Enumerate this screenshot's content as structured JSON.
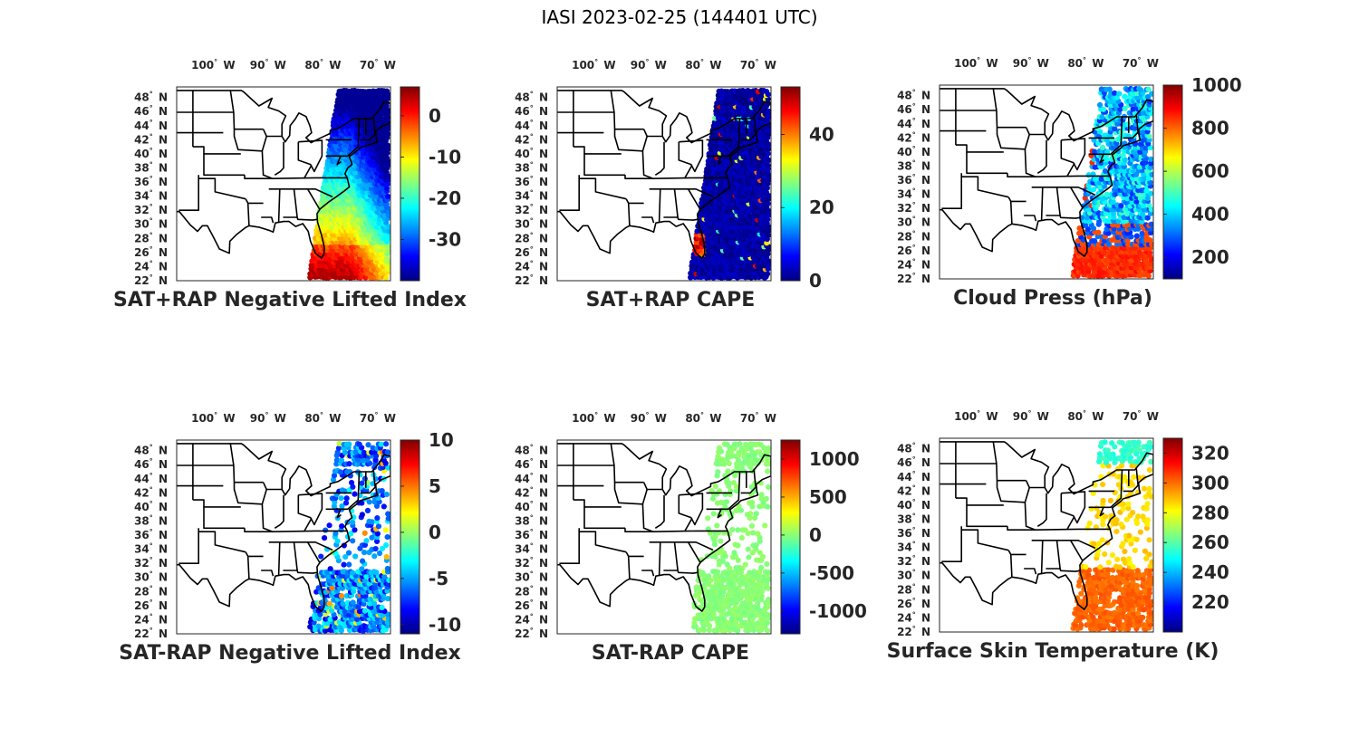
{
  "title": "IASI 2023-02-25 (144401 UTC)",
  "lon_ticks": [
    {
      "deg": "100",
      "dir": "W"
    },
    {
      "deg": "90",
      "dir": "W"
    },
    {
      "deg": "80",
      "dir": "W"
    },
    {
      "deg": "70",
      "dir": "W"
    }
  ],
  "lat_ticks": [
    {
      "deg": "48",
      "dir": "N"
    },
    {
      "deg": "46",
      "dir": "N"
    },
    {
      "deg": "44",
      "dir": "N"
    },
    {
      "deg": "42",
      "dir": "N"
    },
    {
      "deg": "40",
      "dir": "N"
    },
    {
      "deg": "38",
      "dir": "N"
    },
    {
      "deg": "36",
      "dir": "N"
    },
    {
      "deg": "34",
      "dir": "N"
    },
    {
      "deg": "32",
      "dir": "N"
    },
    {
      "deg": "30",
      "dir": "N"
    },
    {
      "deg": "28",
      "dir": "N"
    },
    {
      "deg": "26",
      "dir": "N"
    },
    {
      "deg": "24",
      "dir": "N"
    },
    {
      "deg": "22",
      "dir": "N"
    }
  ],
  "map_extent": {
    "lon": [
      -107,
      -68
    ],
    "lat": [
      22,
      49.5
    ]
  },
  "colormap": "jet",
  "panels": [
    {
      "id": "p1",
      "title": "SAT+RAP Negative Lifted Index",
      "colorbar": {
        "min": -40,
        "max": 7,
        "ticks": [
          "0",
          "-10",
          "-20",
          "-30"
        ],
        "tick_values": [
          0,
          -10,
          -20,
          -30
        ]
      },
      "coverage": "wide swath over the eastern United States and adjacent Atlantic; warm values (0 to -10) over the Southeast, cold values (-20 to -30) to the north and offshore"
    },
    {
      "id": "p2",
      "title": "SAT+RAP CAPE",
      "colorbar": {
        "min": 0,
        "max": 53,
        "ticks": [
          "40",
          "20",
          "0"
        ],
        "tick_values": [
          40,
          20,
          0
        ]
      },
      "coverage": "wide swath, almost entirely near 0 with isolated higher values over Florida and the Carolinas"
    },
    {
      "id": "p3",
      "title": "Cloud Press (hPa)",
      "colorbar": {
        "min": 100,
        "max": 1000,
        "ticks": [
          "1000",
          "800",
          "600",
          "400",
          "200"
        ],
        "tick_values": [
          1000,
          800,
          600,
          400,
          200
        ]
      },
      "coverage": "cloudy footprints only; high clouds (200-400 hPa) inland, low clouds (800-900 hPa) offshore in the south"
    },
    {
      "id": "p4",
      "title": "SAT-RAP Negative Lifted Index",
      "colorbar": {
        "min": -11,
        "max": 10,
        "ticks": [
          "10",
          "5",
          "0",
          "-5",
          "-10"
        ],
        "tick_values": [
          10,
          5,
          0,
          -5,
          -10
        ]
      },
      "coverage": "clear footprints only; mostly -2 to -10 with a few positive values"
    },
    {
      "id": "p5",
      "title": "SAT-RAP CAPE",
      "colorbar": {
        "min": -1300,
        "max": 1250,
        "ticks": [
          "1000",
          "500",
          "0",
          "-500",
          "-1000"
        ],
        "tick_values": [
          1000,
          500,
          0,
          -500,
          -1000
        ]
      },
      "coverage": "clear footprints only; nearly uniform around 0"
    },
    {
      "id": "p6",
      "title": "Surface Skin Temperature (K)",
      "colorbar": {
        "min": 200,
        "max": 330,
        "ticks": [
          "320",
          "300",
          "280",
          "260",
          "240",
          "220"
        ],
        "tick_values": [
          320,
          300,
          280,
          260,
          240,
          220
        ]
      },
      "coverage": "clear footprints only; about 300 K offshore in the south, 280-290 K inland, about 255 K in the far north"
    }
  ]
}
